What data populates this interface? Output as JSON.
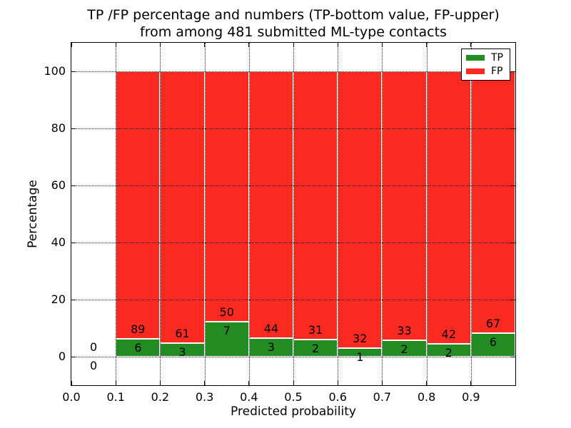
{
  "chart_data": {
    "type": "bar",
    "stacked": true,
    "normalized_to_percent": true,
    "title_line1": "TP /FP percentage and numbers (TP-bottom value, FP-upper)",
    "title_line2": "from among 481 submitted ML-type contacts",
    "xlabel": "Predicted probability",
    "ylabel": "Percentage",
    "xlim": [
      0.0,
      1.0
    ],
    "ylim": [
      -10,
      110
    ],
    "xticks": [
      0.0,
      0.1,
      0.2,
      0.3,
      0.4,
      0.5,
      0.6,
      0.7,
      0.8,
      0.9
    ],
    "xtick_labels": [
      "0.0",
      "0.1",
      "0.2",
      "0.3",
      "0.4",
      "0.5",
      "0.6",
      "0.7",
      "0.8",
      "0.9"
    ],
    "yticks": [
      0,
      20,
      40,
      60,
      80,
      100
    ],
    "ytick_labels": [
      "0",
      "20",
      "40",
      "60",
      "80",
      "100"
    ],
    "grid": "dotted",
    "bin_width": 0.1,
    "bin_starts": [
      0.0,
      0.1,
      0.2,
      0.3,
      0.4,
      0.5,
      0.6,
      0.7,
      0.8,
      0.9
    ],
    "series": [
      {
        "name": "TP",
        "color": "#228b22",
        "counts": [
          0,
          6,
          3,
          7,
          3,
          2,
          1,
          2,
          2,
          6
        ]
      },
      {
        "name": "FP",
        "color": "#fa2a20",
        "counts": [
          0,
          89,
          61,
          50,
          44,
          31,
          32,
          33,
          42,
          67
        ]
      }
    ],
    "total_contacts": 481,
    "value_rule": "green segment height = tp/(tp+fp)*100; FP count printed above boundary, TP count below",
    "legend": {
      "position": "upper-right",
      "entries": [
        "TP",
        "FP"
      ]
    }
  }
}
